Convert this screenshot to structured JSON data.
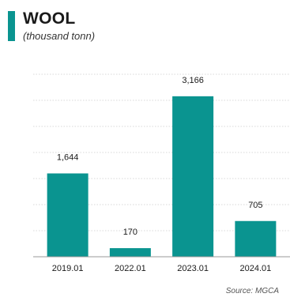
{
  "header": {
    "title": "WOOL",
    "subtitle": "(thousand tonn)"
  },
  "source": "Source: MGCA",
  "colors": {
    "accent": "#0a9490",
    "grid": "#cccccc",
    "axis": "#999999"
  },
  "chart_data": {
    "type": "bar",
    "title": "WOOL",
    "subtitle": "(thousand tonn)",
    "categories": [
      "2019.01",
      "2022.01",
      "2023.01",
      "2024.01"
    ],
    "values": [
      1644,
      170,
      3166,
      705
    ],
    "value_labels": [
      "1,644",
      "170",
      "3,166",
      "705"
    ],
    "xlabel": "",
    "ylabel": "",
    "ylim": [
      0,
      3600
    ],
    "grid": true,
    "legend": "none"
  }
}
